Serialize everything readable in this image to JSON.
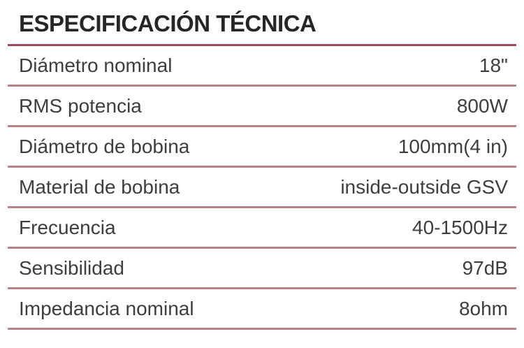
{
  "title": "ESPECIFICACIÓN TÉCNICA",
  "colors": {
    "background": "#ffffff",
    "title_text": "#262626",
    "body_text": "#3e3e3e",
    "header_rule": "#9c4d59",
    "row_rule": "#b5848a"
  },
  "rows": [
    {
      "label": "Diámetro nominal",
      "value": "18\""
    },
    {
      "label": "RMS potencia",
      "value": "800W"
    },
    {
      "label": "Diámetro de bobina",
      "value": "100mm(4 in)"
    },
    {
      "label": "Material de bobina",
      "value": "inside-outside GSV"
    },
    {
      "label": "Frecuencia",
      "value": "40-1500Hz"
    },
    {
      "label": "Sensibilidad",
      "value": "97dB"
    },
    {
      "label": "Impedancia nominal",
      "value": "8ohm"
    }
  ]
}
